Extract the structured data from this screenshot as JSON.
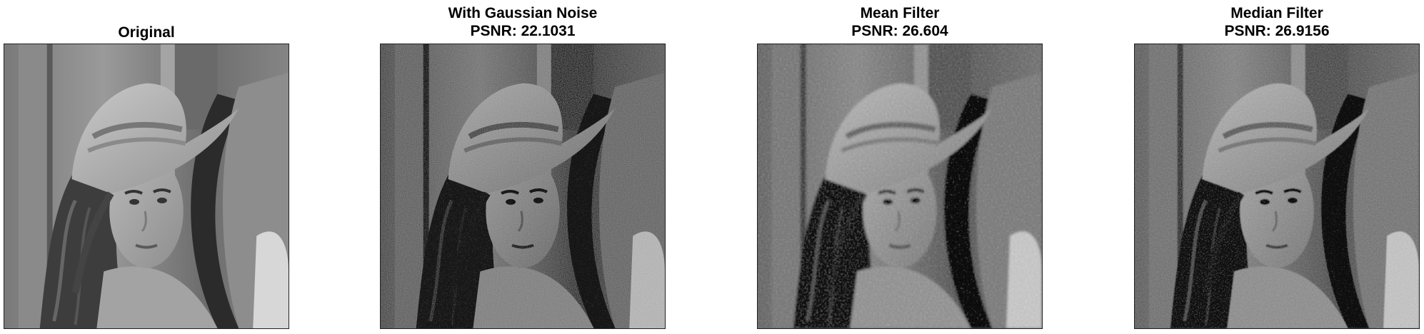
{
  "figure": {
    "panels": [
      {
        "id": "original",
        "title_lines": [
          "Original"
        ],
        "variant": "clean"
      },
      {
        "id": "noisy",
        "title_lines": [
          "With Gaussian Noise",
          "PSNR: 22.1031"
        ],
        "variant": "noisy"
      },
      {
        "id": "mean",
        "title_lines": [
          "Mean Filter",
          "PSNR: 26.604"
        ],
        "variant": "blurred"
      },
      {
        "id": "median",
        "title_lines": [
          "Median Filter",
          "PSNR: 26.9156"
        ],
        "variant": "median"
      }
    ]
  }
}
